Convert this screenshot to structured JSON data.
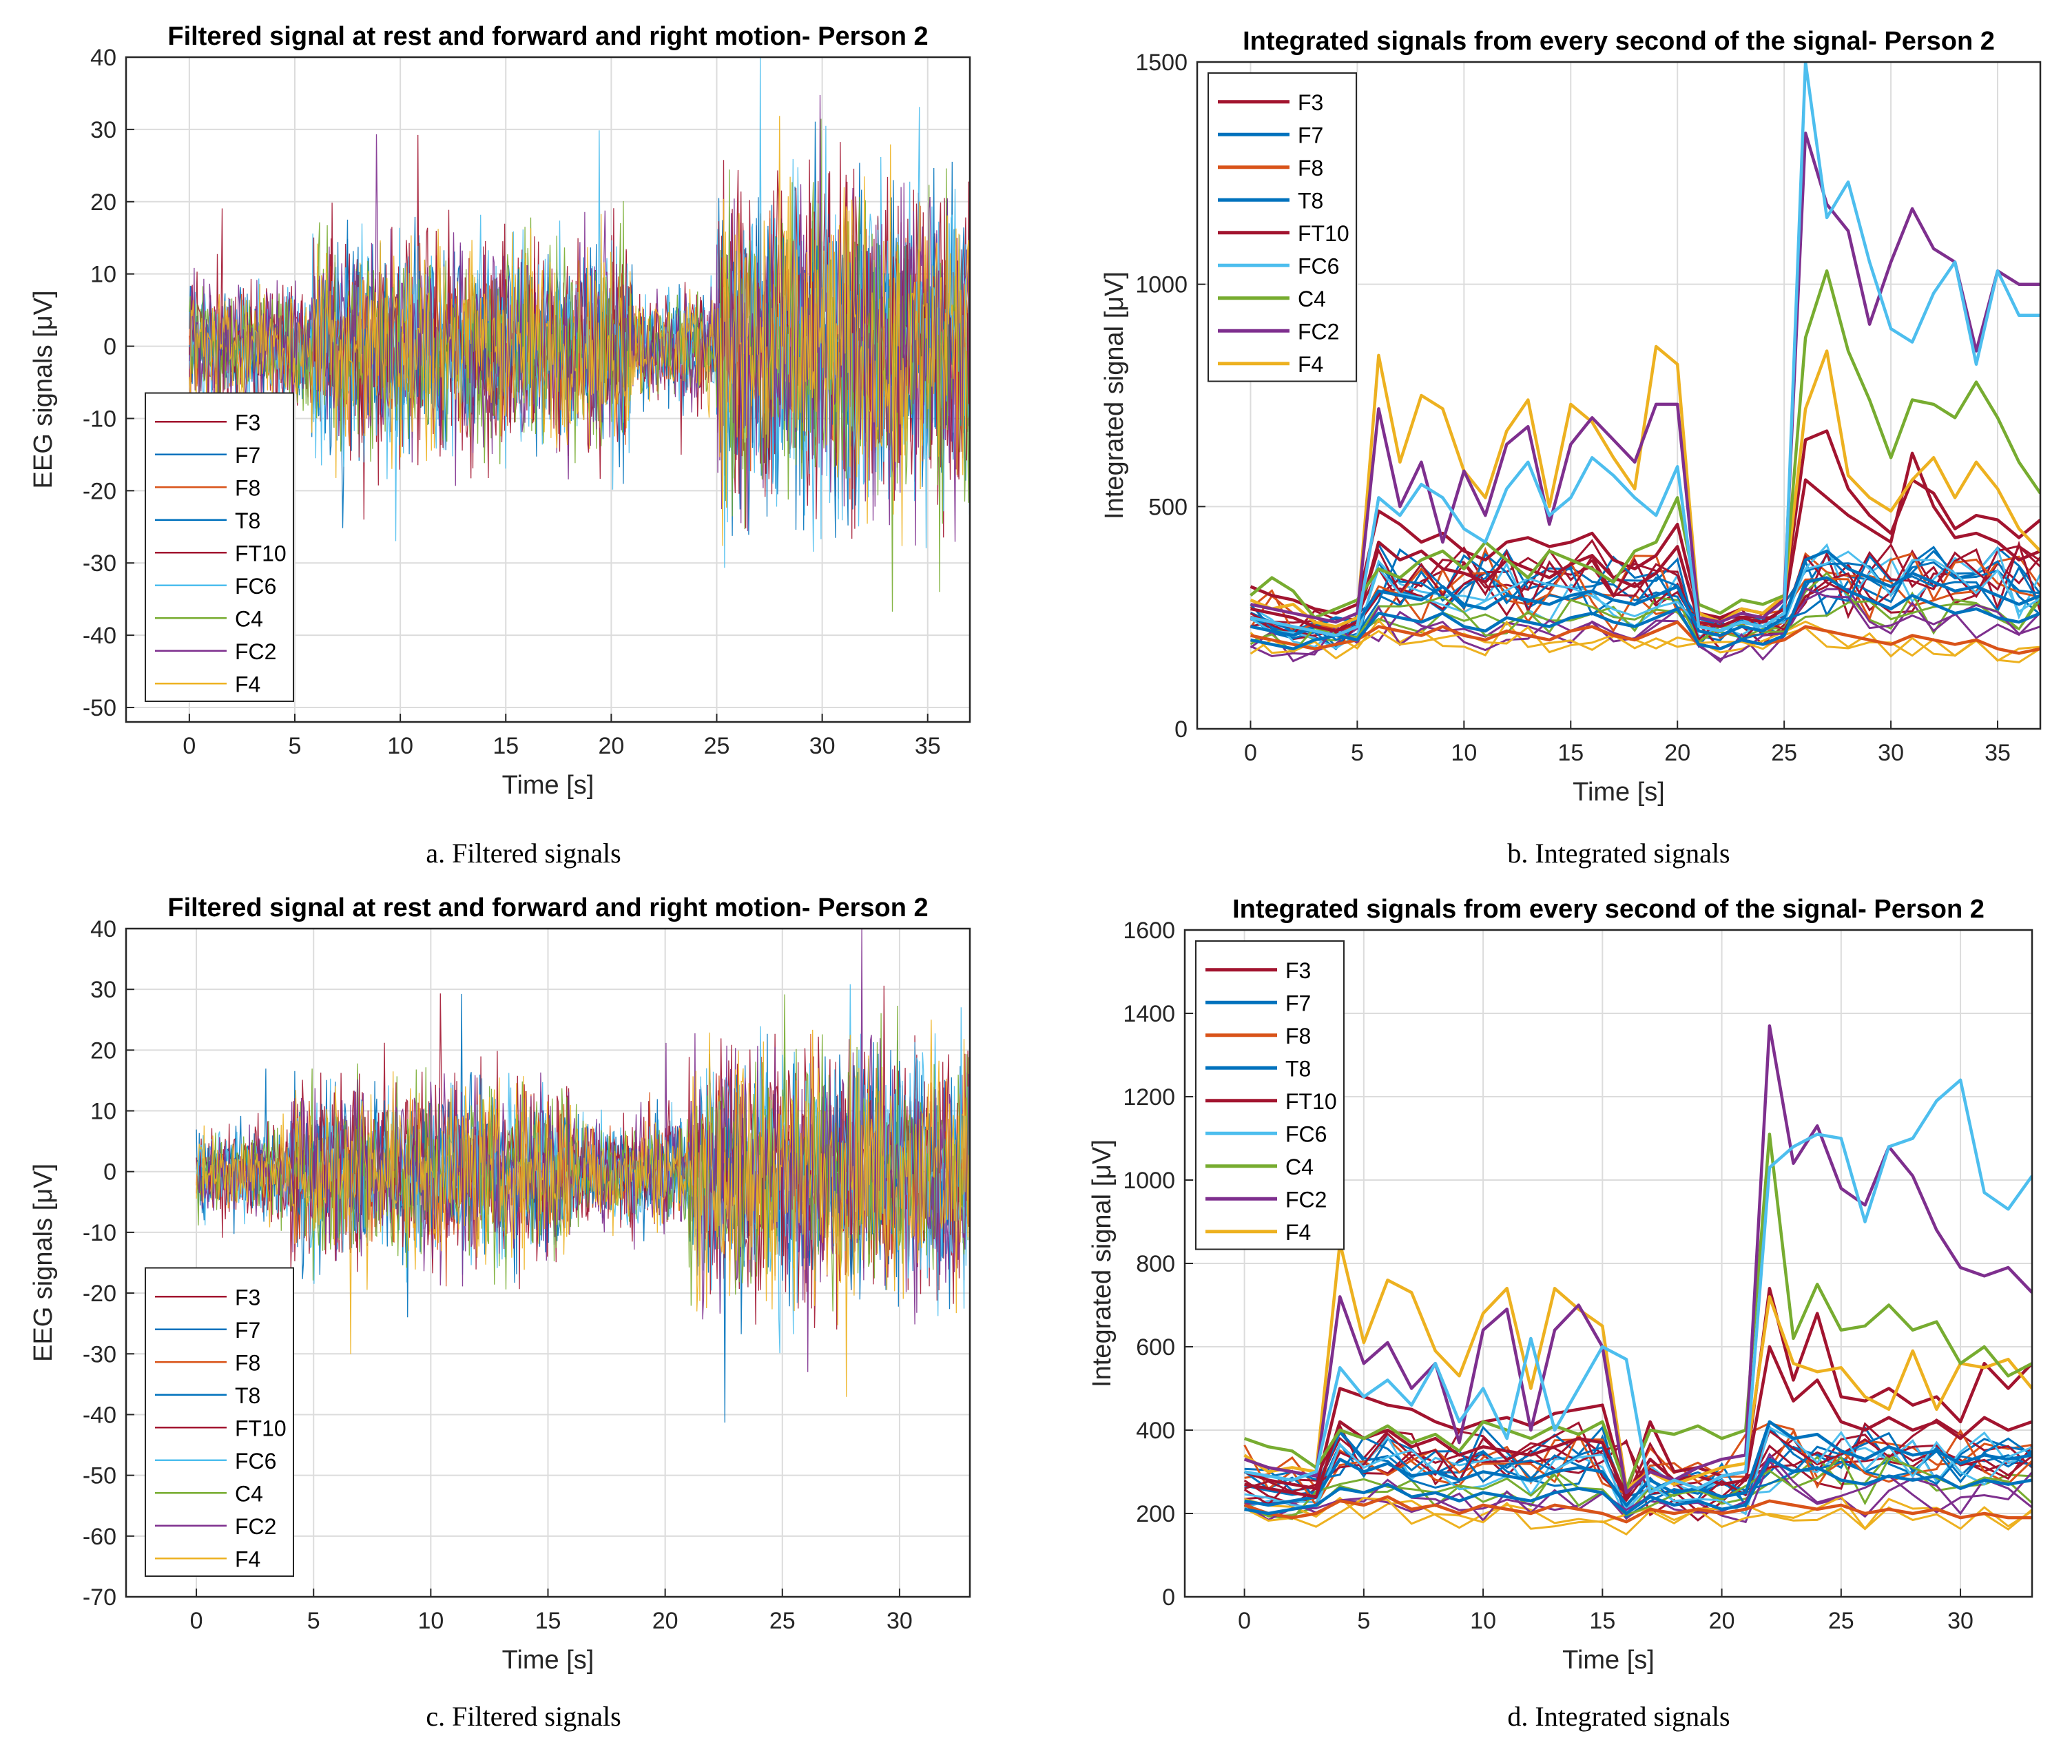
{
  "colors": {
    "F3": "#A2142F",
    "F7": "#0072BD",
    "F8": "#D95319",
    "T8": "#0072BD",
    "FT10": "#A2142F",
    "FC6": "#4DBEEE",
    "C4": "#77AC30",
    "FC2": "#7E2F8E",
    "F4": "#EDB120",
    "grid": "#dcdcdc",
    "axis": "#262626"
  },
  "captions": [
    "a. Filtered signals",
    "b. Integrated signals",
    "c. Filtered signals",
    "d. Integrated signals"
  ],
  "chart_data": [
    {
      "type": "line",
      "title": "Filtered signal at rest and forward and right motion- Person 2",
      "xlabel": "Time [s]",
      "ylabel": "EEG signals [μV]",
      "xlim": [
        -3,
        37
      ],
      "ylim": [
        -52,
        40
      ],
      "xticks": [
        0,
        5,
        10,
        15,
        20,
        25,
        30,
        35
      ],
      "yticks": [
        -50,
        -40,
        -30,
        -20,
        -10,
        0,
        10,
        20,
        30,
        40
      ],
      "grid": true,
      "legend": "bottom-left",
      "legend_entries": [
        "F3",
        "F7",
        "F8",
        "T8",
        "FT10",
        "FC6",
        "C4",
        "FC2",
        "F4"
      ],
      "segments": [
        {
          "start": 0,
          "end": 5.8,
          "amplitude": 9
        },
        {
          "start": 5.8,
          "end": 21,
          "amplitude": 16
        },
        {
          "start": 21,
          "end": 25,
          "amplitude": 8
        },
        {
          "start": 25,
          "end": 37,
          "amplitude": 25
        }
      ]
    },
    {
      "type": "line",
      "title": "Integrated signals from every second of the signal- Person 2",
      "xlabel": "Time [s]",
      "ylabel": "Integrated signal [μV]",
      "xlim": [
        -2.5,
        37
      ],
      "ylim": [
        0,
        1500
      ],
      "xticks": [
        0,
        5,
        10,
        15,
        20,
        25,
        30,
        35
      ],
      "yticks": [
        0,
        500,
        1000,
        1500
      ],
      "grid": true,
      "legend": "top-left",
      "legend_entries": [
        "F3",
        "F7",
        "F8",
        "T8",
        "FT10",
        "FC6",
        "C4",
        "FC2",
        "F4"
      ],
      "x": [
        0,
        1,
        2,
        3,
        4,
        5,
        6,
        7,
        8,
        9,
        10,
        11,
        12,
        13,
        14,
        15,
        16,
        17,
        18,
        19,
        20,
        21,
        22,
        23,
        24,
        25,
        26,
        27,
        28,
        29,
        30,
        31,
        32,
        33,
        34,
        35,
        36,
        37
      ],
      "series": [
        {
          "name": "FC6",
          "color": "#4DBEEE",
          "values": [
            250,
            240,
            230,
            220,
            210,
            230,
            520,
            480,
            550,
            520,
            450,
            420,
            540,
            600,
            480,
            520,
            610,
            570,
            520,
            480,
            590,
            230,
            220,
            240,
            230,
            260,
            1500,
            1150,
            1230,
            1050,
            900,
            870,
            980,
            1050,
            820,
            1030,
            930,
            930
          ]
        },
        {
          "name": "FC2",
          "color": "#7E2F8E",
          "values": [
            280,
            270,
            260,
            250,
            240,
            260,
            720,
            500,
            600,
            420,
            580,
            480,
            640,
            680,
            460,
            640,
            700,
            650,
            600,
            730,
            730,
            250,
            240,
            260,
            250,
            290,
            1340,
            1180,
            1120,
            910,
            1050,
            1170,
            1080,
            1050,
            850,
            1030,
            1000,
            1000
          ]
        },
        {
          "name": "C4",
          "color": "#77AC30",
          "values": [
            300,
            340,
            310,
            250,
            270,
            290,
            360,
            340,
            380,
            400,
            360,
            420,
            380,
            340,
            400,
            380,
            360,
            330,
            400,
            420,
            520,
            280,
            260,
            290,
            280,
            300,
            880,
            1030,
            850,
            740,
            610,
            740,
            730,
            700,
            780,
            700,
            600,
            530
          ]
        },
        {
          "name": "F4",
          "color": "#EDB120",
          "values": [
            290,
            270,
            280,
            240,
            230,
            250,
            840,
            600,
            750,
            720,
            580,
            520,
            670,
            740,
            500,
            730,
            690,
            610,
            540,
            860,
            820,
            260,
            240,
            270,
            260,
            300,
            720,
            850,
            570,
            520,
            490,
            560,
            610,
            520,
            600,
            540,
            450,
            400
          ]
        },
        {
          "name": "F3",
          "color": "#A2142F",
          "values": [
            320,
            300,
            290,
            270,
            260,
            280,
            490,
            460,
            420,
            440,
            400,
            380,
            420,
            430,
            410,
            420,
            440,
            380,
            360,
            390,
            460,
            260,
            250,
            270,
            260,
            290,
            650,
            670,
            540,
            480,
            440,
            560,
            530,
            450,
            480,
            470,
            430,
            470
          ]
        },
        {
          "name": "FT10",
          "color": "#A2142F",
          "values": [
            270,
            260,
            250,
            230,
            220,
            240,
            420,
            380,
            400,
            360,
            350,
            330,
            380,
            360,
            340,
            370,
            390,
            340,
            320,
            350,
            410,
            240,
            230,
            250,
            240,
            270,
            560,
            520,
            480,
            450,
            420,
            620,
            500,
            430,
            440,
            420,
            380,
            400
          ]
        },
        {
          "name": "F7",
          "color": "#0072BD",
          "values": [
            230,
            220,
            210,
            230,
            250,
            240,
            310,
            300,
            290,
            320,
            280,
            270,
            300,
            290,
            280,
            300,
            310,
            290,
            280,
            300,
            320,
            220,
            210,
            230,
            220,
            250,
            380,
            400,
            360,
            340,
            320,
            350,
            330,
            310,
            320,
            300,
            280,
            300
          ]
        },
        {
          "name": "T8",
          "color": "#0072BD",
          "values": [
            200,
            190,
            180,
            200,
            210,
            200,
            260,
            250,
            240,
            260,
            230,
            220,
            250,
            240,
            230,
            250,
            260,
            240,
            230,
            250,
            270,
            190,
            180,
            200,
            190,
            210,
            330,
            340,
            310,
            290,
            270,
            300,
            280,
            260,
            270,
            250,
            240,
            260
          ]
        },
        {
          "name": "F8",
          "color": "#D95319",
          "values": [
            210,
            200,
            190,
            180,
            190,
            200,
            230,
            220,
            210,
            230,
            210,
            200,
            220,
            210,
            200,
            220,
            230,
            210,
            200,
            220,
            240,
            190,
            180,
            200,
            190,
            200,
            230,
            220,
            210,
            200,
            190,
            210,
            200,
            190,
            200,
            180,
            170,
            180
          ]
        }
      ]
    },
    {
      "type": "line",
      "title": "Filtered signal at rest and forward and right motion- Person 2",
      "xlabel": "Time [s]",
      "ylabel": "EEG signals [μV]",
      "xlim": [
        -3,
        33
      ],
      "ylim": [
        -70,
        40
      ],
      "xticks": [
        0,
        5,
        10,
        15,
        20,
        25,
        30
      ],
      "yticks": [
        -70,
        -60,
        -50,
        -40,
        -30,
        -20,
        -10,
        0,
        10,
        20,
        30,
        40
      ],
      "grid": true,
      "legend": "bottom-left",
      "legend_entries": [
        "F3",
        "F7",
        "F8",
        "T8",
        "FT10",
        "FC6",
        "C4",
        "FC2",
        "F4"
      ],
      "segments": [
        {
          "start": 0,
          "end": 4,
          "amplitude": 8
        },
        {
          "start": 4,
          "end": 16,
          "amplitude": 16
        },
        {
          "start": 16,
          "end": 21,
          "amplitude": 10
        },
        {
          "start": 21,
          "end": 33,
          "amplitude": 22
        }
      ]
    },
    {
      "type": "line",
      "title": "Integrated signals from every second of the signal- Person 2",
      "xlabel": "Time [s]",
      "ylabel": "Integrated signal [μV]",
      "xlim": [
        -2.5,
        33
      ],
      "ylim": [
        0,
        1600
      ],
      "xticks": [
        0,
        5,
        10,
        15,
        20,
        25,
        30
      ],
      "yticks": [
        0,
        200,
        400,
        600,
        800,
        1000,
        1200,
        1400,
        1600
      ],
      "grid": true,
      "legend": "top-left",
      "legend_entries": [
        "F3",
        "F7",
        "F8",
        "T8",
        "FT10",
        "FC6",
        "C4",
        "FC2",
        "F4"
      ],
      "x": [
        0,
        1,
        2,
        3,
        4,
        5,
        6,
        7,
        8,
        9,
        10,
        11,
        12,
        13,
        14,
        15,
        16,
        17,
        18,
        19,
        20,
        21,
        22,
        23,
        24,
        25,
        26,
        27,
        28,
        29,
        30,
        31,
        32,
        33
      ],
      "series": [
        {
          "name": "FC6",
          "color": "#4DBEEE",
          "values": [
            300,
            290,
            280,
            300,
            550,
            480,
            520,
            460,
            560,
            420,
            500,
            380,
            620,
            400,
            500,
            600,
            570,
            250,
            280,
            260,
            290,
            300,
            1030,
            1080,
            1110,
            1100,
            900,
            1080,
            1100,
            1190,
            1240,
            970,
            930,
            1010
          ]
        },
        {
          "name": "FC2",
          "color": "#7E2F8E",
          "values": [
            330,
            310,
            300,
            290,
            720,
            560,
            610,
            500,
            560,
            370,
            640,
            690,
            400,
            640,
            700,
            600,
            250,
            300,
            280,
            310,
            330,
            340,
            1370,
            1040,
            1130,
            980,
            940,
            1080,
            1010,
            880,
            790,
            770,
            790,
            730
          ]
        },
        {
          "name": "C4",
          "color": "#77AC30",
          "values": [
            380,
            360,
            350,
            310,
            400,
            380,
            410,
            370,
            390,
            350,
            420,
            400,
            380,
            410,
            390,
            420,
            260,
            400,
            390,
            410,
            380,
            400,
            1110,
            620,
            750,
            640,
            650,
            700,
            640,
            660,
            560,
            600,
            530,
            560
          ]
        },
        {
          "name": "F4",
          "color": "#EDB120",
          "values": [
            340,
            300,
            310,
            300,
            850,
            610,
            760,
            730,
            590,
            530,
            680,
            740,
            500,
            740,
            690,
            650,
            260,
            300,
            270,
            290,
            310,
            320,
            720,
            560,
            540,
            550,
            480,
            450,
            590,
            450,
            560,
            550,
            570,
            500
          ]
        },
        {
          "name": "F3",
          "color": "#A2142F",
          "values": [
            300,
            280,
            270,
            260,
            500,
            480,
            460,
            450,
            420,
            400,
            420,
            430,
            410,
            440,
            450,
            460,
            250,
            420,
            300,
            310,
            290,
            300,
            740,
            520,
            680,
            480,
            470,
            500,
            460,
            480,
            420,
            560,
            500,
            560
          ]
        },
        {
          "name": "FT10",
          "color": "#A2142F",
          "values": [
            270,
            260,
            250,
            240,
            420,
            380,
            400,
            360,
            380,
            340,
            360,
            350,
            340,
            360,
            380,
            370,
            240,
            330,
            280,
            290,
            270,
            280,
            600,
            470,
            520,
            420,
            400,
            430,
            400,
            420,
            380,
            430,
            400,
            420
          ]
        },
        {
          "name": "F7",
          "color": "#0072BD",
          "values": [
            230,
            220,
            230,
            240,
            330,
            300,
            320,
            290,
            300,
            280,
            300,
            290,
            280,
            300,
            310,
            300,
            220,
            280,
            250,
            260,
            240,
            250,
            420,
            380,
            390,
            350,
            330,
            360,
            340,
            350,
            320,
            340,
            330,
            340
          ]
        },
        {
          "name": "T8",
          "color": "#0072BD",
          "values": [
            210,
            200,
            210,
            220,
            260,
            250,
            270,
            240,
            250,
            230,
            250,
            240,
            230,
            250,
            260,
            250,
            200,
            240,
            220,
            230,
            210,
            220,
            330,
            300,
            310,
            280,
            270,
            290,
            280,
            290,
            260,
            280,
            270,
            280
          ]
        },
        {
          "name": "F8",
          "color": "#D95319",
          "values": [
            220,
            200,
            190,
            200,
            230,
            220,
            240,
            210,
            220,
            200,
            220,
            210,
            200,
            220,
            210,
            200,
            180,
            210,
            200,
            210,
            200,
            210,
            230,
            220,
            210,
            220,
            200,
            210,
            200,
            210,
            190,
            200,
            190,
            190
          ]
        }
      ]
    }
  ]
}
